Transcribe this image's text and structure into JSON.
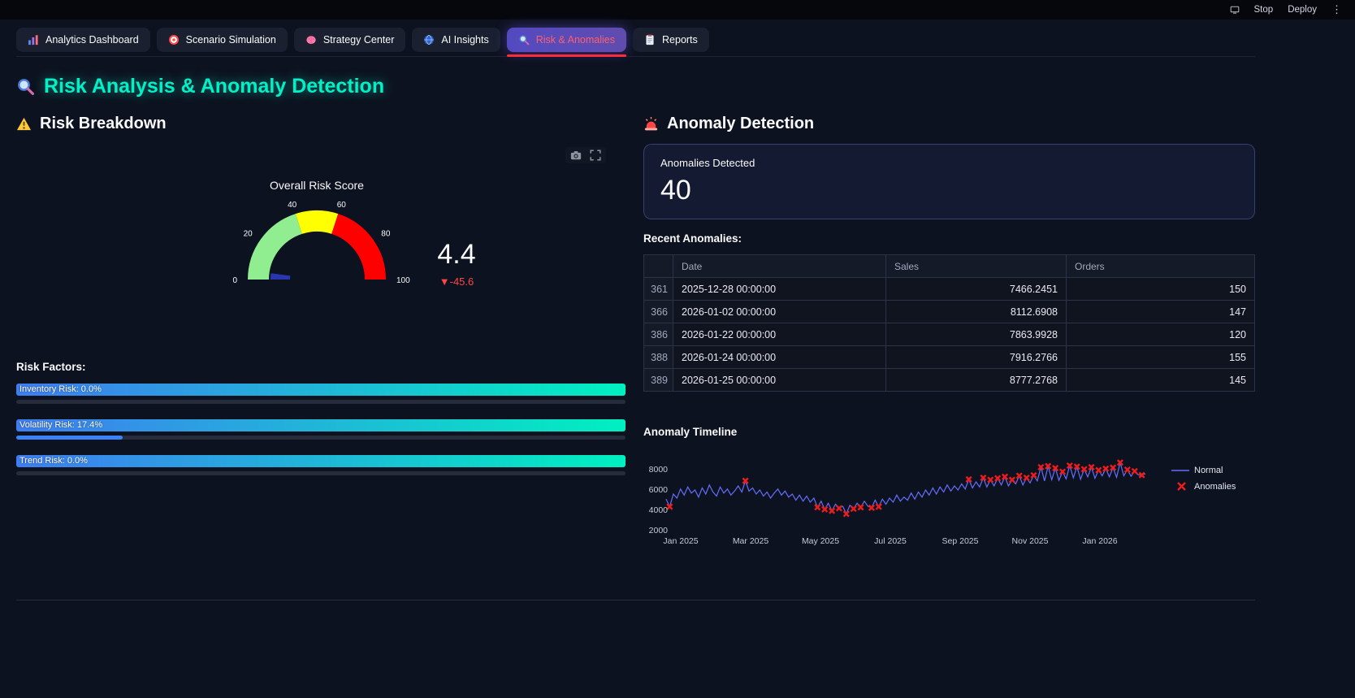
{
  "topbar": {
    "stop": "Stop",
    "deploy": "Deploy",
    "menu": "⋮"
  },
  "tabs": [
    {
      "label": "Analytics Dashboard",
      "icon": "bar-chart",
      "active": false
    },
    {
      "label": "Scenario Simulation",
      "icon": "target",
      "active": false
    },
    {
      "label": "Strategy Center",
      "icon": "brain",
      "active": false
    },
    {
      "label": "AI Insights",
      "icon": "globe",
      "active": false
    },
    {
      "label": "Risk & Anomalies",
      "icon": "magnifier",
      "active": true
    },
    {
      "label": "Reports",
      "icon": "clipboard",
      "active": false
    }
  ],
  "page_title": {
    "icon": "magnifier",
    "text": "Risk Analysis & Anomaly Detection"
  },
  "colors": {
    "title_accent": "#00f0c8",
    "active_tab_underline": "#ff2b3a",
    "factor_gradient_start": "#3f7df0",
    "factor_gradient_end": "#00f0c0"
  },
  "risk_section": {
    "heading": {
      "icon": "warning",
      "text": "Risk Breakdown"
    },
    "factors_label": "Risk Factors:",
    "factors": [
      {
        "label": "Inventory Risk: 0.0%",
        "percent": 0.0
      },
      {
        "label": "Volatility Risk: 17.4%",
        "percent": 17.4
      },
      {
        "label": "Trend Risk: 0.0%",
        "percent": 0.0
      }
    ]
  },
  "anomaly_section": {
    "heading": {
      "icon": "siren",
      "text": "Anomaly Detection"
    },
    "metric": {
      "label": "Anomalies Detected",
      "value": "40"
    },
    "recent_label": "Recent Anomalies:",
    "table": {
      "columns": [
        "",
        "Date",
        "Sales",
        "Orders"
      ],
      "rows": [
        [
          "361",
          "2025-12-28 00:00:00",
          "7466.2451",
          "150"
        ],
        [
          "366",
          "2026-01-02 00:00:00",
          "8112.6908",
          "147"
        ],
        [
          "386",
          "2026-01-22 00:00:00",
          "7863.9928",
          "120"
        ],
        [
          "388",
          "2026-01-24 00:00:00",
          "7916.2766",
          "155"
        ],
        [
          "389",
          "2026-01-25 00:00:00",
          "8777.2768",
          "145"
        ]
      ]
    },
    "timeline_label": "Anomaly Timeline"
  },
  "chart_data": [
    {
      "type": "gauge",
      "title": "Overall Risk Score",
      "value": 4.4,
      "delta": -45.6,
      "range": [
        0,
        100
      ],
      "ticks": [
        0,
        20,
        40,
        60,
        80,
        100
      ],
      "steps": [
        {
          "from": 0,
          "to": 40,
          "color": "#90ee90"
        },
        {
          "from": 40,
          "to": 60,
          "color": "#ffff00"
        },
        {
          "from": 60,
          "to": 100,
          "color": "#ff0000"
        }
      ],
      "bar_color": "#2a36b1"
    },
    {
      "type": "line",
      "title": "Anomaly Timeline",
      "ylim": [
        1500,
        9300
      ],
      "yticks": [
        2000,
        4000,
        6000,
        8000
      ],
      "xticks": [
        "Jan 2025",
        "Mar 2025",
        "May 2025",
        "Jul 2025",
        "Sep 2025",
        "Nov 2025",
        "Jan 2026"
      ],
      "legend_position": "right",
      "series": [
        {
          "name": "Normal",
          "color": "#636efa",
          "values": [
            5100,
            4350,
            5600,
            5200,
            6100,
            5500,
            6300,
            5700,
            6000,
            5300,
            6200,
            5600,
            6500,
            5800,
            5400,
            6300,
            5700,
            6100,
            5500,
            5900,
            6400,
            5800,
            6900,
            5900,
            6200,
            5600,
            6000,
            5400,
            5800,
            5200,
            5700,
            6100,
            5500,
            5900,
            5300,
            5600,
            5000,
            5500,
            4900,
            5400,
            4800,
            5200,
            4300,
            4900,
            4100,
            4700,
            3950,
            4600,
            4200,
            4400,
            3650,
            4500,
            4150,
            4700,
            4300,
            4900,
            4400,
            4250,
            5000,
            4350,
            5100,
            4600,
            5200,
            4800,
            5500,
            4900,
            5300,
            5000,
            5700,
            5100,
            5800,
            5300,
            6000,
            5500,
            6200,
            5600,
            6300,
            5800,
            6500,
            5900,
            6400,
            6000,
            6600,
            6100,
            7050,
            6200,
            6800,
            6300,
            7200,
            6300,
            7000,
            6400,
            7150,
            6500,
            7300,
            6400,
            7000,
            6600,
            7400,
            6500,
            7200,
            6700,
            7450,
            6900,
            8250,
            6900,
            8350,
            7000,
            8150,
            6950,
            7800,
            7100,
            8400,
            7200,
            8300,
            7050,
            8050,
            7300,
            8250,
            7150,
            7950,
            7400,
            8100,
            7300,
            8200,
            7250,
            8700,
            7400,
            8000,
            7350,
            7850,
            7500,
            7466,
            7600
          ]
        }
      ],
      "anomalies": {
        "name": "Anomalies",
        "color": "#ee1c1c",
        "indices": [
          1,
          22,
          42,
          44,
          46,
          48,
          50,
          52,
          54,
          57,
          59,
          84,
          88,
          90,
          92,
          94,
          96,
          98,
          100,
          102,
          104,
          106,
          108,
          110,
          112,
          114,
          116,
          118,
          120,
          122,
          124,
          126,
          128,
          130,
          132
        ]
      }
    }
  ]
}
